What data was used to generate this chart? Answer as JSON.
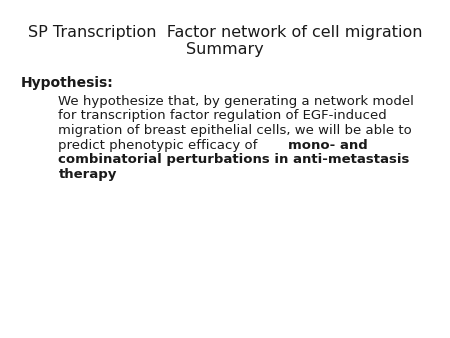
{
  "title_line1": "SP Transcription  Factor network of cell migration",
  "title_line2": "Summary",
  "title_fontsize": 11.5,
  "title_color": "#1a1a1a",
  "bg_color": "#ffffff",
  "hypothesis_label": "Hypothesis:",
  "hypothesis_fontsize": 10,
  "body_fontsize": 9.5,
  "normal_text_lines": [
    "We hypothesize that, by generating a network model",
    "for transcription factor regulation of EGF-induced",
    "migration of breast epithelial cells, we will be able to",
    "predict phenotypic efficacy of "
  ],
  "bold_inline": "mono- and",
  "bold_lines": [
    "combinatorial perturbations in anti-metastasis",
    "therapy"
  ]
}
